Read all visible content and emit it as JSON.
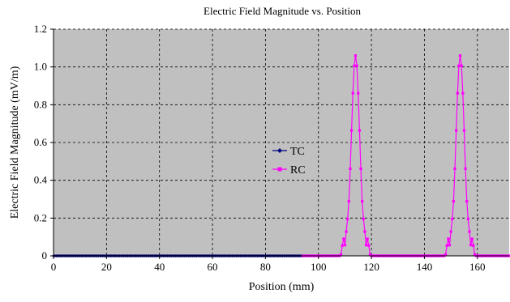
{
  "chart_data": {
    "type": "line",
    "title": "Electric Field Magnitude vs. Position",
    "xlabel": "Position (mm)",
    "ylabel": "Electric Field Magnitude (mV/m)",
    "xlim": [
      0,
      172
    ],
    "ylim": [
      0,
      1.2
    ],
    "x_ticks": [
      0,
      20,
      40,
      60,
      80,
      100,
      120,
      140,
      160
    ],
    "x_tick_labels": [
      "0",
      "20",
      "40",
      "60",
      "80",
      "100",
      "120",
      "140",
      "160"
    ],
    "y_ticks": [
      0,
      0.2,
      0.4,
      0.6,
      0.8,
      1.0,
      1.2
    ],
    "y_tick_labels": [
      "0",
      "0.2",
      "0.4",
      "0.6",
      "0.8",
      "1.0",
      "1.2"
    ],
    "grid": true,
    "legend_position": "center",
    "plot_background": "#c0c0c0",
    "series": [
      {
        "name": "TC",
        "color": "#000080",
        "marker": "diamond",
        "x_range": [
          0,
          94
        ],
        "step": 0.5,
        "value": 0
      },
      {
        "name": "RC",
        "color": "#ff00ff",
        "marker": "square",
        "x_range": [
          94,
          172
        ],
        "step": 0.5,
        "baseline": 0,
        "peaks": [
          {
            "center": 114,
            "amplitude": 1.06,
            "sigma": 1.55,
            "shoulder": 0.09
          },
          {
            "center": 153.5,
            "amplitude": 1.06,
            "sigma": 1.55,
            "shoulder": 0.09
          }
        ]
      }
    ]
  }
}
